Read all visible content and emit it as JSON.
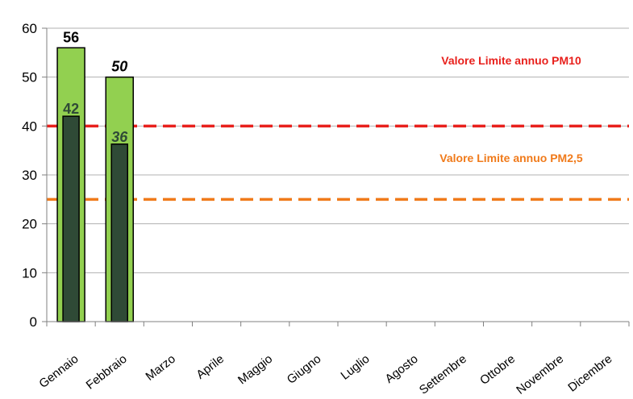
{
  "chart_data": {
    "type": "bar",
    "categories": [
      "Gennaio",
      "Febbraio",
      "Marzo",
      "Aprile",
      "Maggio",
      "Giugno",
      "Luglio",
      "Agosto",
      "Settembre",
      "Ottobre",
      "Novembre",
      "Dicembre"
    ],
    "series": [
      {
        "values": [
          56,
          50,
          null,
          null,
          null,
          null,
          null,
          null,
          null,
          null,
          null,
          null
        ],
        "color": "#92d050",
        "labels": [
          "56",
          "50"
        ],
        "label_style": [
          "bold",
          "bold-italic"
        ]
      },
      {
        "values": [
          42,
          36.3,
          null,
          null,
          null,
          null,
          null,
          null,
          null,
          null,
          null,
          null
        ],
        "color": "#2f4a36",
        "labels": [
          "42",
          "36"
        ],
        "label_style": [
          "bold",
          "bold-italic"
        ]
      }
    ],
    "reference_lines": [
      {
        "label": "Valore Limite annuo PM10",
        "value": 40,
        "color": "#e8201c"
      },
      {
        "label": "Valore Limite annuo PM2,5",
        "value": 25,
        "color": "#f07a1a"
      }
    ],
    "title": "",
    "xlabel": "",
    "ylabel": "",
    "ylim": [
      0,
      60
    ],
    "yticks": [
      0,
      10,
      20,
      30,
      40,
      50,
      60
    ],
    "grid": true,
    "legend": "none"
  }
}
